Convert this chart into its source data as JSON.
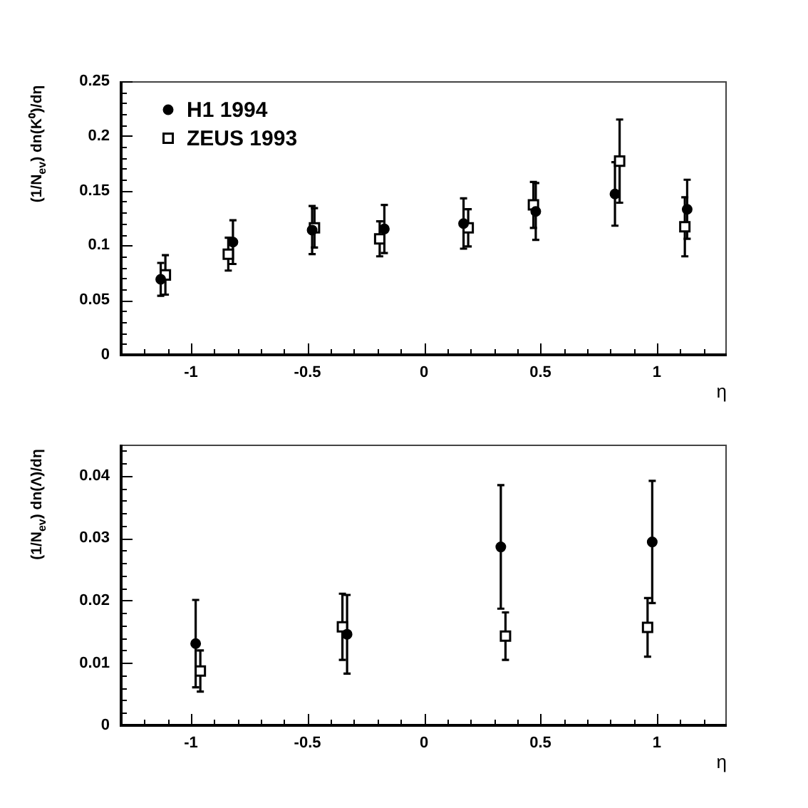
{
  "chart_data": [
    {
      "type": "scatter",
      "xlabel": "η",
      "ylabel": "(1/N$_{ev}$) dn(K⁰)/dη",
      "xlim": [
        -1.3,
        1.3
      ],
      "xticks": [
        {
          "value": -1.2,
          "label": null
        },
        {
          "value": -1.1,
          "label": null
        },
        -1,
        {
          "value": -0.9,
          "label": null
        },
        {
          "value": -0.8,
          "label": null
        },
        {
          "value": -0.7,
          "label": null
        },
        {
          "value": -0.6,
          "label": null
        },
        -0.5,
        {
          "value": -0.4,
          "label": null
        },
        {
          "value": -0.3,
          "label": null
        },
        {
          "value": -0.2,
          "label": null
        },
        {
          "value": -0.1,
          "label": null
        },
        0,
        {
          "value": 0.1,
          "label": null
        },
        {
          "value": 0.2,
          "label": null
        },
        {
          "value": 0.3,
          "label": null
        },
        {
          "value": 0.4,
          "label": null
        },
        0.5,
        {
          "value": 0.6,
          "label": null
        },
        {
          "value": 0.7,
          "label": null
        },
        {
          "value": 0.8,
          "label": null
        },
        {
          "value": 0.9,
          "label": null
        },
        1,
        {
          "value": 1.1,
          "label": null
        },
        {
          "value": 1.2,
          "label": null
        }
      ],
      "ylim": [
        0,
        0.25
      ],
      "yticks": [
        0,
        {
          "value": 0.01,
          "label": null
        },
        {
          "value": 0.02,
          "label": null
        },
        {
          "value": 0.03,
          "label": null
        },
        {
          "value": 0.04,
          "label": null
        },
        0.05,
        {
          "value": 0.06,
          "label": null
        },
        {
          "value": 0.07,
          "label": null
        },
        {
          "value": 0.08,
          "label": null
        },
        {
          "value": 0.09,
          "label": null
        },
        0.1,
        {
          "value": 0.11,
          "label": null
        },
        {
          "value": 0.12,
          "label": null
        },
        {
          "value": 0.13,
          "label": null
        },
        {
          "value": 0.14,
          "label": null
        },
        0.15,
        {
          "value": 0.16,
          "label": null
        },
        {
          "value": 0.17,
          "label": null
        },
        {
          "value": 0.18,
          "label": null
        },
        {
          "value": 0.19,
          "label": null
        },
        0.2,
        {
          "value": 0.21,
          "label": null
        },
        {
          "value": 0.22,
          "label": null
        },
        {
          "value": 0.23,
          "label": null
        },
        {
          "value": 0.24,
          "label": null
        },
        0.25
      ],
      "grid": false,
      "legend": "top left",
      "series": [
        {
          "name": "H1 1994",
          "color": "#000000",
          "marker": "circle",
          "x": [
            -1.13,
            -0.82,
            -0.48,
            -0.17,
            0.17,
            0.48,
            0.82,
            1.13
          ],
          "values": [
            0.069,
            0.103,
            0.114,
            0.115,
            0.12,
            0.131,
            0.147,
            0.133
          ],
          "errors": [
            0.015,
            0.02,
            0.022,
            0.022,
            0.023,
            0.026,
            0.029,
            0.027
          ]
        },
        {
          "name": "ZEUS 1993",
          "color": "#000000",
          "marker": "square",
          "x": [
            -1.11,
            -0.84,
            -0.47,
            -0.19,
            0.19,
            0.47,
            0.84,
            1.12
          ],
          "values": [
            0.073,
            0.092,
            0.116,
            0.106,
            0.116,
            0.137,
            0.177,
            0.117
          ],
          "errors": [
            0.018,
            0.015,
            0.018,
            0.016,
            0.017,
            0.021,
            0.038,
            0.027
          ]
        }
      ]
    },
    {
      "type": "scatter",
      "xlabel": "η",
      "ylabel": "(1/N$_{ev}$) dn(Λ)/dη",
      "xlim": [
        -1.3,
        1.3
      ],
      "xticks": [
        {
          "value": -1.2,
          "label": null
        },
        {
          "value": -1.1,
          "label": null
        },
        -1,
        {
          "value": -0.9,
          "label": null
        },
        {
          "value": -0.8,
          "label": null
        },
        {
          "value": -0.7,
          "label": null
        },
        {
          "value": -0.6,
          "label": null
        },
        -0.5,
        {
          "value": -0.4,
          "label": null
        },
        {
          "value": -0.3,
          "label": null
        },
        {
          "value": -0.2,
          "label": null
        },
        {
          "value": -0.1,
          "label": null
        },
        0,
        {
          "value": 0.1,
          "label": null
        },
        {
          "value": 0.2,
          "label": null
        },
        {
          "value": 0.3,
          "label": null
        },
        {
          "value": 0.4,
          "label": null
        },
        0.5,
        {
          "value": 0.6,
          "label": null
        },
        {
          "value": 0.7,
          "label": null
        },
        {
          "value": 0.8,
          "label": null
        },
        {
          "value": 0.9,
          "label": null
        },
        1,
        {
          "value": 1.1,
          "label": null
        },
        {
          "value": 1.2,
          "label": null
        }
      ],
      "ylim": [
        0,
        0.045
      ],
      "yticks": [
        0,
        {
          "value": 0.002,
          "label": null
        },
        {
          "value": 0.004,
          "label": null
        },
        {
          "value": 0.006,
          "label": null
        },
        {
          "value": 0.008,
          "label": null
        },
        0.01,
        {
          "value": 0.012,
          "label": null
        },
        {
          "value": 0.014,
          "label": null
        },
        {
          "value": 0.016,
          "label": null
        },
        {
          "value": 0.018,
          "label": null
        },
        0.02,
        {
          "value": 0.022,
          "label": null
        },
        {
          "value": 0.024,
          "label": null
        },
        {
          "value": 0.026,
          "label": null
        },
        {
          "value": 0.028,
          "label": null
        },
        0.03,
        {
          "value": 0.032,
          "label": null
        },
        {
          "value": 0.034,
          "label": null
        },
        {
          "value": 0.036,
          "label": null
        },
        {
          "value": 0.038,
          "label": null
        },
        0.04,
        {
          "value": 0.042,
          "label": null
        },
        {
          "value": 0.044,
          "label": null
        }
      ],
      "grid": false,
      "series": [
        {
          "color": "#000000",
          "marker": "circle",
          "x": [
            -0.98,
            -0.33,
            0.33,
            0.98
          ],
          "values": [
            0.0131,
            0.0146,
            0.0286,
            0.0294
          ],
          "errors": [
            0.007,
            0.0063,
            0.0099,
            0.0098
          ]
        },
        {
          "color": "#000000",
          "marker": "square",
          "x": [
            -0.96,
            -0.35,
            0.35,
            0.96
          ],
          "values": [
            0.0087,
            0.0158,
            0.0143,
            0.0157
          ],
          "errors": [
            0.0033,
            0.0053,
            0.0038,
            0.0047
          ]
        }
      ]
    }
  ]
}
